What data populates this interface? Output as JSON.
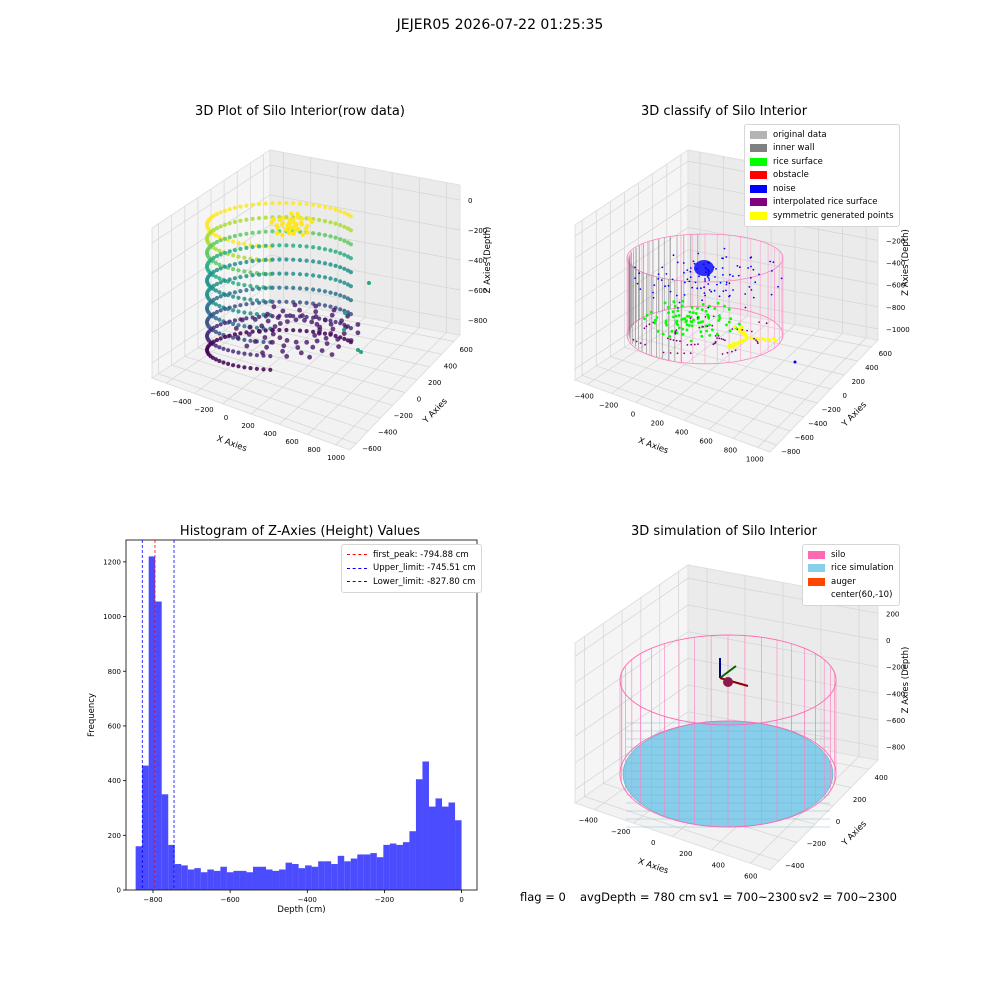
{
  "suptitle": "JEJER05 2026-07-22 01:25:35",
  "panels": {
    "raw": {
      "title": "3D Plot of Silo Interior(row data)",
      "xlabel": "X Axies",
      "ylabel": "Y Axies",
      "zlabel": "Z Axies (Depth)",
      "xticks": [
        "−600",
        "−400",
        "−200",
        "0",
        "200",
        "400",
        "600",
        "800",
        "1000"
      ],
      "yticks": [
        "−600",
        "−400",
        "−200",
        "0",
        "200",
        "400",
        "600"
      ],
      "zticks": [
        "−800",
        "−600",
        "−400",
        "−200",
        "0"
      ]
    },
    "classify": {
      "title": "3D classify of Silo Interior",
      "xlabel": "X Axies",
      "ylabel": "Y Axies",
      "zlabel": "Z Axies (Depth)",
      "xticks": [
        "−400",
        "−200",
        "0",
        "200",
        "400",
        "600",
        "800",
        "1000"
      ],
      "yticks": [
        "−800",
        "−600",
        "−400",
        "−200",
        "0",
        "200",
        "400",
        "600"
      ],
      "zticks": [
        "−1000",
        "−800",
        "−600",
        "−400",
        "−200",
        "0",
        "200"
      ],
      "legend": [
        {
          "label": "original data",
          "color": "#b3b3b3"
        },
        {
          "label": "inner wall",
          "color": "#808080"
        },
        {
          "label": "rice surface",
          "color": "#00ff00"
        },
        {
          "label": "obstacle",
          "color": "#ff0000"
        },
        {
          "label": "noise",
          "color": "#0000ff"
        },
        {
          "label": "interpolated rice surface",
          "color": "#800080"
        },
        {
          "label": "symmetric generated points",
          "color": "#ffff00"
        }
      ]
    },
    "simulation": {
      "title": "3D simulation of Silo Interior",
      "xlabel": "X Axies",
      "ylabel": "Y Axies",
      "zlabel": "Z Axies (Depth)",
      "xticks": [
        "−400",
        "−200",
        "0",
        "200",
        "400",
        "600"
      ],
      "yticks": [
        "−400",
        "−200",
        "0",
        "200",
        "400"
      ],
      "zticks": [
        "−800",
        "−600",
        "−400",
        "−200",
        "0",
        "200"
      ],
      "legend": [
        {
          "label": "silo",
          "color": "#ff69b4"
        },
        {
          "label": "rice simulation",
          "color": "#87ceeb"
        },
        {
          "label": "auger",
          "color": "#ff4500"
        },
        {
          "label": "center(60,-10)",
          "color": "#ffffff"
        }
      ]
    }
  },
  "status": {
    "flag": "flag = 0",
    "avg": "avgDepth = 780 cm",
    "sv1": "sv1 = 700~2300",
    "sv2": "sv2 = 700~2300"
  },
  "chart_data": {
    "type": "bar",
    "title": "Histogram of Z-Axies (Height) Values",
    "xlabel": "Depth (cm)",
    "ylabel": "Frequency",
    "xlim": [
      -870,
      40
    ],
    "ylim": [
      0,
      1280
    ],
    "xticks": [
      -800,
      -600,
      -400,
      -200,
      0
    ],
    "yticks": [
      0,
      200,
      400,
      600,
      800,
      1000,
      1200
    ],
    "bar_color": "#0000ff",
    "bin_start": -845,
    "bin_width": 16.9,
    "values": [
      160,
      455,
      1220,
      1055,
      350,
      165,
      95,
      90,
      75,
      80,
      65,
      75,
      70,
      85,
      65,
      70,
      70,
      65,
      85,
      85,
      75,
      70,
      75,
      100,
      95,
      80,
      90,
      85,
      105,
      105,
      95,
      125,
      105,
      115,
      130,
      130,
      135,
      120,
      165,
      170,
      165,
      175,
      215,
      405,
      470,
      305,
      335,
      305,
      320,
      255
    ],
    "vlines": [
      {
        "label": "first_peak: -794.88 cm",
        "x": -794.88,
        "color": "#ff0000"
      },
      {
        "label": "Upper_limit: -745.51 cm",
        "x": -745.51,
        "color": "#0000ff"
      },
      {
        "label": "Lower_limit: -827.80 cm",
        "x": -827.8,
        "color": "#0000ff"
      }
    ],
    "legend_position": "upper-right"
  }
}
